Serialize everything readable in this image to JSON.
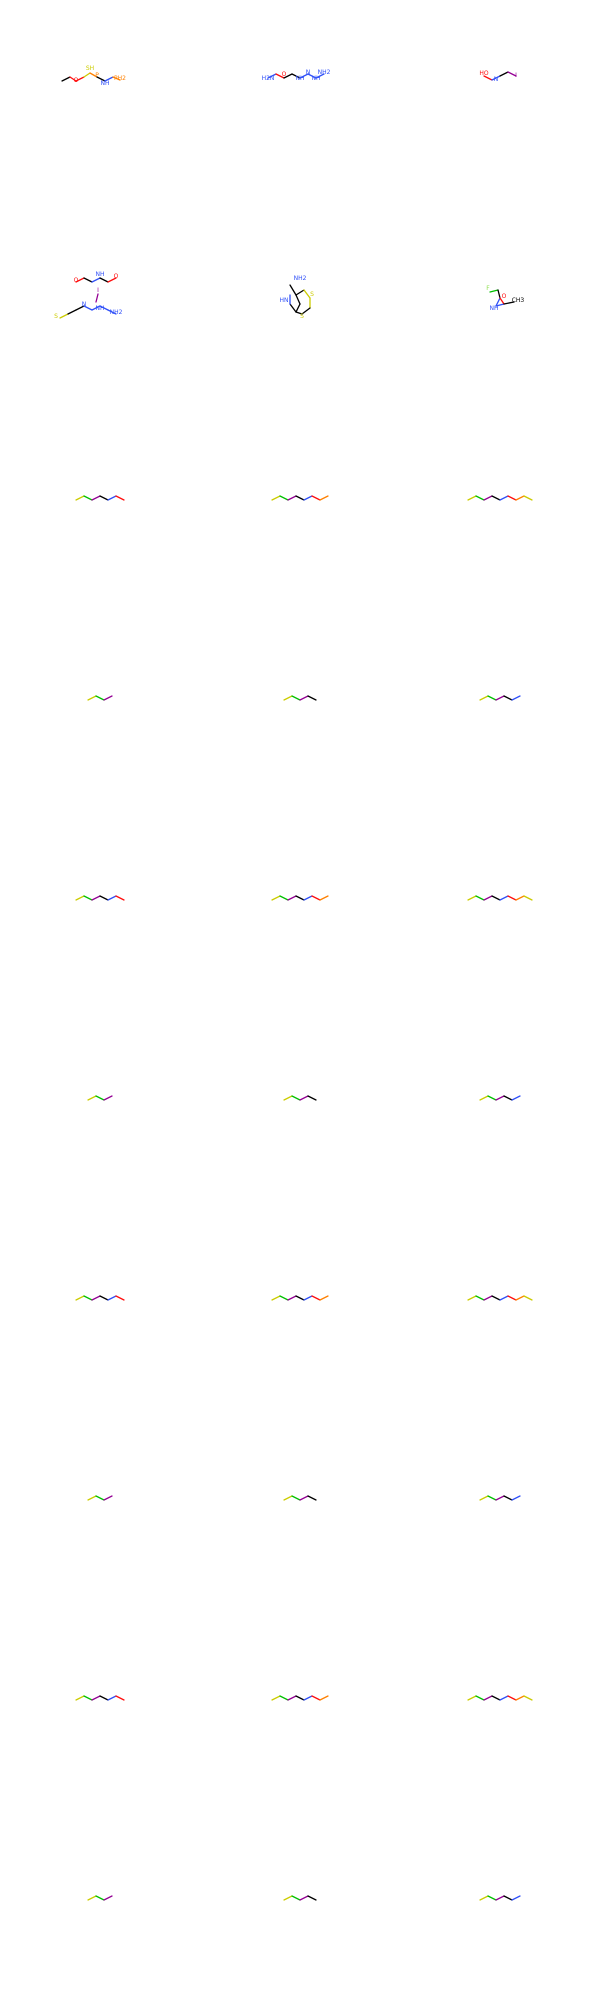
{
  "molecules": [
    {
      "atoms": [
        {
          "t": "SH"
        },
        {
          "t": "P"
        },
        {
          "t": "O"
        },
        {
          "t": "NH"
        },
        {
          "t": "PH2"
        }
      ],
      "bonds": [
        [
          -38,
          81,
          -30,
          77,
          "#000"
        ],
        [
          -30,
          77,
          -24,
          81,
          "#FF0D0D"
        ],
        [
          -24,
          81,
          -16,
          77,
          "#FF0D0D"
        ],
        [
          -16,
          77,
          -10,
          73,
          "#CCCC00"
        ],
        [
          -10,
          73,
          -3,
          77,
          "#FF8000"
        ],
        [
          -3,
          77,
          5,
          81,
          "#000"
        ],
        [
          5,
          81,
          13,
          77,
          "#3050F8"
        ],
        [
          13,
          77,
          20,
          80,
          "#FF8000"
        ]
      ],
      "labels": [
        [
          -10,
          70,
          "SH",
          "#CCCC00"
        ],
        [
          -3,
          77,
          "P",
          "#FF8000"
        ],
        [
          -24,
          82,
          "O",
          "#FF0D0D"
        ],
        [
          5,
          85,
          "NH",
          "#3050F8"
        ],
        [
          20,
          80,
          "PH2",
          "#FF8000"
        ]
      ]
    },
    {
      "atoms": [
        {
          "t": "H2N"
        },
        {
          "t": "O"
        },
        {
          "t": "NH"
        },
        {
          "t": "NH"
        },
        {
          "t": "NH"
        }
      ],
      "bonds": [
        [
          -32,
          78,
          -24,
          74,
          "#3050F8"
        ],
        [
          -24,
          74,
          -16,
          78,
          "#FF0D0D"
        ],
        [
          -16,
          78,
          -8,
          74,
          "#000"
        ],
        [
          -8,
          74,
          0,
          78,
          "#000"
        ],
        [
          0,
          78,
          8,
          74,
          "#3050F8"
        ],
        [
          8,
          74,
          16,
          78,
          "#3050F8"
        ],
        [
          16,
          78,
          24,
          74,
          "#3050F8"
        ]
      ],
      "labels": [
        [
          -32,
          80,
          "H2N",
          "#3050F8"
        ],
        [
          -16,
          76,
          "O",
          "#FF0D0D"
        ],
        [
          0,
          80,
          "NH",
          "#3050F8"
        ],
        [
          8,
          74,
          "N",
          "#3050F8"
        ],
        [
          16,
          80,
          "NH",
          "#3050F8"
        ],
        [
          24,
          74,
          "NH2",
          "#3050F8"
        ]
      ]
    },
    {
      "atoms": [
        {
          "t": "HO"
        },
        {
          "t": "NH"
        },
        {
          "t": "I"
        }
      ],
      "bonds": [
        [
          -16,
          76,
          -8,
          80,
          "#FF0D0D"
        ],
        [
          -8,
          80,
          0,
          76,
          "#3050F8"
        ],
        [
          0,
          76,
          8,
          72,
          "#000"
        ],
        [
          8,
          72,
          16,
          76,
          "#940094"
        ]
      ],
      "labels": [
        [
          -16,
          75,
          "HO",
          "#FF0D0D"
        ],
        [
          -4,
          81,
          "N",
          "#3050F8"
        ],
        [
          16,
          77,
          "I",
          "#940094"
        ]
      ]
    },
    {
      "atoms": [
        {
          "t": "O"
        },
        {
          "t": "NH"
        },
        {
          "t": "O"
        },
        {
          "t": "S"
        },
        {
          "t": "N"
        },
        {
          "t": "NH"
        },
        {
          "t": "NH2"
        }
      ],
      "bonds": [
        [
          -24,
          82,
          -16,
          78,
          "#FF0D0D"
        ],
        [
          -16,
          78,
          -8,
          82,
          "#000"
        ],
        [
          -8,
          82,
          0,
          78,
          "#3050F8"
        ],
        [
          0,
          78,
          8,
          82,
          "#000"
        ],
        [
          8,
          82,
          16,
          78,
          "#FF0D0D"
        ],
        [
          -40,
          118,
          -32,
          114,
          "#CCCC00"
        ],
        [
          -32,
          114,
          -24,
          110,
          "#000"
        ],
        [
          -24,
          110,
          -16,
          106,
          "#000"
        ],
        [
          -16,
          106,
          -8,
          110,
          "#3050F8"
        ],
        [
          -8,
          110,
          0,
          106,
          "#3050F8"
        ],
        [
          -4,
          102,
          -2,
          94,
          "#940094"
        ],
        [
          0,
          106,
          8,
          110,
          "#3050F8"
        ],
        [
          8,
          110,
          16,
          114,
          "#3050F8"
        ]
      ],
      "labels": [
        [
          -24,
          82,
          "O",
          "#FF0D0D"
        ],
        [
          0,
          76,
          "NH",
          "#3050F8"
        ],
        [
          16,
          78,
          "O",
          "#FF0D0D"
        ],
        [
          -44,
          118,
          "S",
          "#CCCC00"
        ],
        [
          -16,
          106,
          "N",
          "#3050F8"
        ],
        [
          -2,
          92,
          "I",
          "#940094"
        ],
        [
          0,
          110,
          "NH",
          "#3050F8"
        ],
        [
          16,
          114,
          "NH2",
          "#3050F8"
        ]
      ]
    },
    {
      "atoms": [
        {
          "t": "NH2"
        },
        {
          "t": "S"
        },
        {
          "t": "NH"
        },
        {
          "t": "S"
        }
      ],
      "bonds": [
        [
          -10,
          85,
          -4,
          95,
          "#000"
        ],
        [
          -4,
          95,
          0,
          104,
          "#000"
        ],
        [
          0,
          104,
          -4,
          112,
          "#000"
        ],
        [
          -4,
          112,
          -10,
          104,
          "#000"
        ],
        [
          -10,
          104,
          -10,
          95,
          "#3050F8"
        ],
        [
          -4,
          95,
          4,
          90,
          "#000"
        ],
        [
          4,
          90,
          10,
          98,
          "#CCCC00"
        ],
        [
          10,
          98,
          10,
          108,
          "#CCCC00"
        ],
        [
          10,
          108,
          2,
          114,
          "#000"
        ],
        [
          2,
          114,
          -4,
          112,
          "#000"
        ]
      ],
      "labels": [
        [
          0,
          80,
          "NH2",
          "#3050F8"
        ],
        [
          12,
          96,
          "S",
          "#CCCC00"
        ],
        [
          -16,
          102,
          "HN",
          "#3050F8"
        ],
        [
          2,
          118,
          "S",
          "#CCCC00"
        ]
      ]
    },
    {
      "atoms": [
        {
          "t": "F"
        },
        {
          "t": "NH"
        },
        {
          "t": "O"
        },
        {
          "t": "CH3"
        }
      ],
      "bonds": [
        [
          -10,
          92,
          -2,
          90,
          "#00C000"
        ],
        [
          -2,
          90,
          0,
          98,
          "#000"
        ],
        [
          0,
          98,
          -4,
          106,
          "#3050F8"
        ],
        [
          -4,
          106,
          4,
          104,
          "#3050F8"
        ],
        [
          4,
          104,
          0,
          98,
          "#FF0D0D"
        ],
        [
          4,
          104,
          14,
          102,
          "#000"
        ]
      ],
      "labels": [
        [
          -12,
          90,
          "F",
          "#90E050"
        ],
        [
          -6,
          110,
          "NH",
          "#3050F8"
        ],
        [
          4,
          98,
          "O",
          "#FF0D0D"
        ],
        [
          18,
          102,
          "CH3",
          "#000"
        ]
      ]
    }
  ],
  "footer": {
    "count": "30"
  }
}
